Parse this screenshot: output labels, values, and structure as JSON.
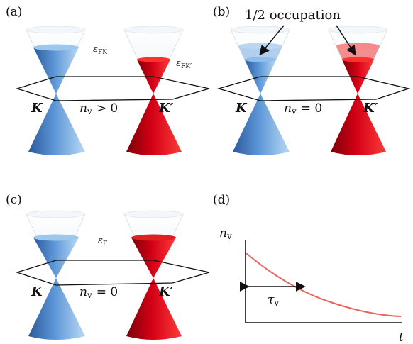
{
  "panels": {
    "a": {
      "label": "(a)",
      "eps_K": "ε",
      "eps_K_sub": "FK",
      "eps_Kp": "ε",
      "eps_Kp_sub": "FK′",
      "k_left": "K",
      "k_right": "K′",
      "nv_main": "n",
      "nv_sub": "v",
      "nv_rel": "> 0"
    },
    "b": {
      "label": "(b)",
      "occupation": "1/2 occupation",
      "k_left": "K",
      "k_right": "K′",
      "nv_main": "n",
      "nv_sub": "v",
      "nv_rel": "= 0"
    },
    "c": {
      "label": "(c)",
      "eps": "ε",
      "eps_sub": "F",
      "k_left": "K",
      "k_right": "K′",
      "nv_main": "n",
      "nv_sub": "v",
      "nv_rel": "= 0"
    },
    "d": {
      "label": "(d)",
      "ylabel_main": "n",
      "ylabel_sub": "v",
      "xlabel": "t",
      "tau_main": "τ",
      "tau_sub": "v"
    }
  },
  "colors": {
    "blue_dark": "#3f6fb0",
    "blue_light": "#9cc7ee",
    "red_dark": "#b00010",
    "red_light": "#ff2a2a",
    "curve": "#e8665f"
  }
}
